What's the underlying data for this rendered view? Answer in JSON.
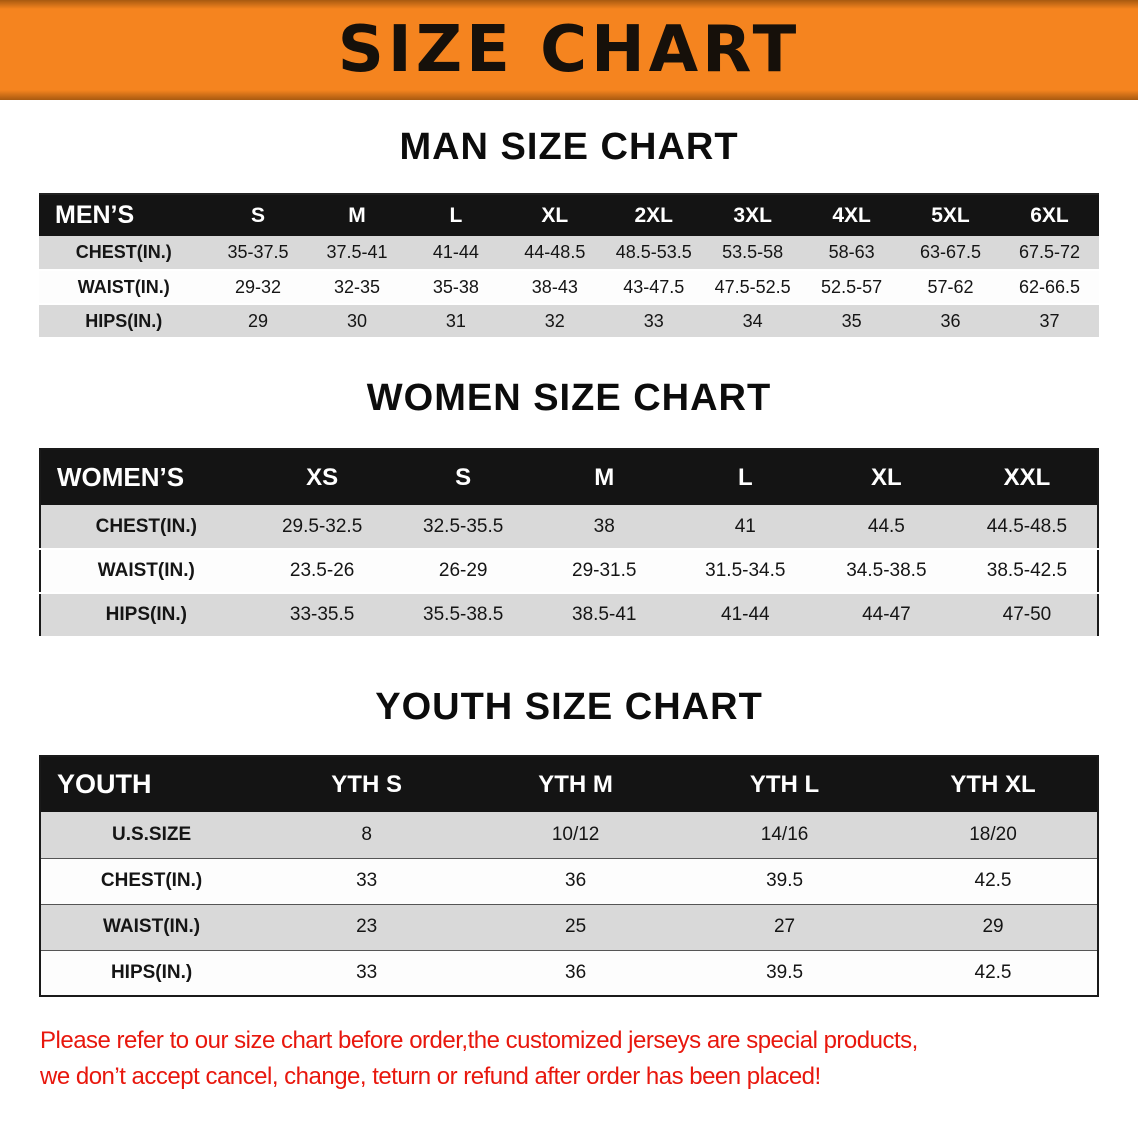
{
  "banner": {
    "title": "SIZE CHART",
    "bg_color": "#f5841f"
  },
  "sections": [
    {
      "id": "men",
      "heading": "MAN SIZE CHART",
      "table": {
        "header": [
          "MEN’S",
          "S",
          "M",
          "L",
          "XL",
          "2XL",
          "3XL",
          "4XL",
          "5XL",
          "6XL"
        ],
        "rows": [
          [
            "CHEST(IN.)",
            "35-37.5",
            "37.5-41",
            "41-44",
            "44-48.5",
            "48.5-53.5",
            "53.5-58",
            "58-63",
            "63-67.5",
            "67.5-72"
          ],
          [
            "WAIST(IN.)",
            "29-32",
            "32-35",
            "35-38",
            "38-43",
            "43-47.5",
            "47.5-52.5",
            "52.5-57",
            "57-62",
            "62-66.5"
          ],
          [
            "HIPS(IN.)",
            "29",
            "30",
            "31",
            "32",
            "33",
            "34",
            "35",
            "36",
            "37"
          ]
        ]
      }
    },
    {
      "id": "women",
      "heading": "WOMEN SIZE CHART",
      "table": {
        "header": [
          "WOMEN’S",
          "XS",
          "S",
          "M",
          "L",
          "XL",
          "XXL"
        ],
        "rows": [
          [
            "CHEST(IN.)",
            "29.5-32.5",
            "32.5-35.5",
            "38",
            "41",
            "44.5",
            "44.5-48.5"
          ],
          [
            "WAIST(IN.)",
            "23.5-26",
            "26-29",
            "29-31.5",
            "31.5-34.5",
            "34.5-38.5",
            "38.5-42.5"
          ],
          [
            "HIPS(IN.)",
            "33-35.5",
            "35.5-38.5",
            "38.5-41",
            "41-44",
            "44-47",
            "47-50"
          ]
        ]
      }
    },
    {
      "id": "youth",
      "heading": "YOUTH SIZE CHART",
      "table": {
        "header": [
          "YOUTH",
          "YTH S",
          "YTH M",
          "YTH L",
          "YTH XL"
        ],
        "rows": [
          [
            "U.S.SIZE",
            "8",
            "10/12",
            "14/16",
            "18/20"
          ],
          [
            "CHEST(IN.)",
            "33",
            "36",
            "39.5",
            "42.5"
          ],
          [
            "WAIST(IN.)",
            "23",
            "25",
            "27",
            "29"
          ],
          [
            "HIPS(IN.)",
            "33",
            "36",
            "39.5",
            "42.5"
          ]
        ]
      }
    }
  ],
  "disclaimer": {
    "color": "#e8170d",
    "line1": "Please refer to our size chart before order,the customized jerseys are special products,",
    "line2": "we don’t accept cancel, change, teturn or refund after order has been placed!"
  }
}
